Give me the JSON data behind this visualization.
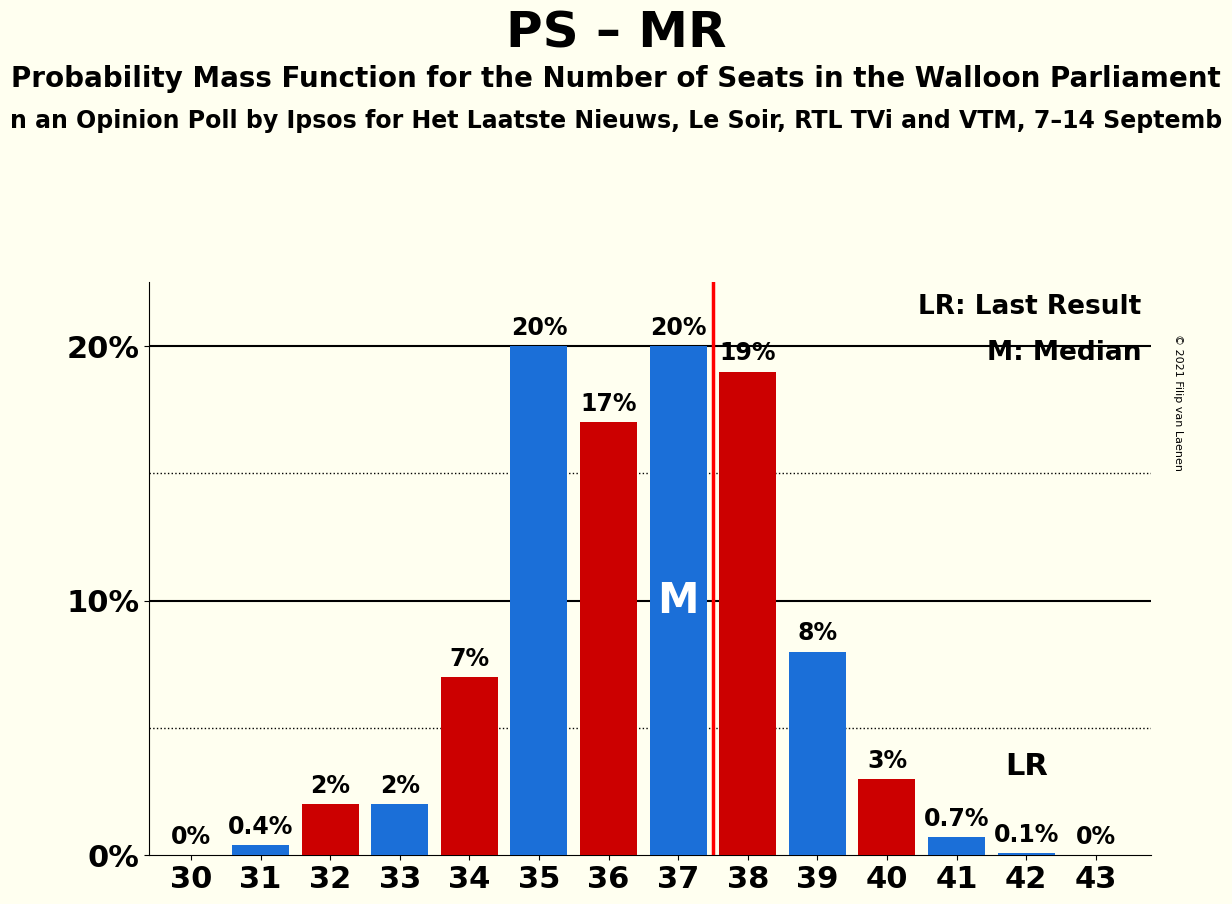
{
  "title": "PS – MR",
  "subtitle1": "Probability Mass Function for the Number of Seats in the Walloon Parliament",
  "subtitle2": "n an Opinion Poll by Ipsos for Het Laatste Nieuws, Le Soir, RTL TVi and VTM, 7–14 Septemb",
  "copyright": "© 2021 Filip van Laenen",
  "background_color": "#FFFFF0",
  "blue_color": "#1B6FD8",
  "red_color": "#CC0000",
  "lr_line_color": "#FF0000",
  "seats": [
    30,
    31,
    32,
    33,
    34,
    35,
    36,
    37,
    38,
    39,
    40,
    41,
    42,
    43
  ],
  "blue_values": [
    0.0,
    0.4,
    0.0,
    2.0,
    0.0,
    20.0,
    0.0,
    20.0,
    0.0,
    8.0,
    0.0,
    0.7,
    0.1,
    0.0
  ],
  "red_values": [
    0.0,
    0.0,
    2.0,
    0.0,
    7.0,
    0.0,
    17.0,
    0.0,
    19.0,
    0.0,
    3.0,
    0.0,
    0.0,
    0.0
  ],
  "blue_labels": [
    "0%",
    "0.4%",
    "",
    "2%",
    "",
    "20%",
    "",
    "20%",
    "",
    "8%",
    "",
    "0.7%",
    "0.1%",
    "0%"
  ],
  "red_labels": [
    "",
    "",
    "2%",
    "",
    "7%",
    "",
    "17%",
    "",
    "19%",
    "",
    "3%",
    "",
    "",
    ""
  ],
  "median_seat": 37,
  "lr_seat": 37.5,
  "ylim": [
    0,
    22.5
  ],
  "solid_lines": [
    10,
    20
  ],
  "dotted_lines": [
    5,
    15
  ],
  "ytick_positions": [
    0,
    10,
    20
  ],
  "ytick_labels": [
    "0%",
    "10%",
    "20%"
  ],
  "legend_lr": "LR: Last Result",
  "legend_m": "M: Median",
  "lr_label": "LR",
  "bar_width": 0.82,
  "title_fontsize": 36,
  "subtitle1_fontsize": 20,
  "subtitle2_fontsize": 17,
  "label_fontsize": 17,
  "tick_fontsize": 22,
  "legend_fontsize": 19,
  "median_label_fontsize": 30,
  "lr_label_fontsize": 22
}
